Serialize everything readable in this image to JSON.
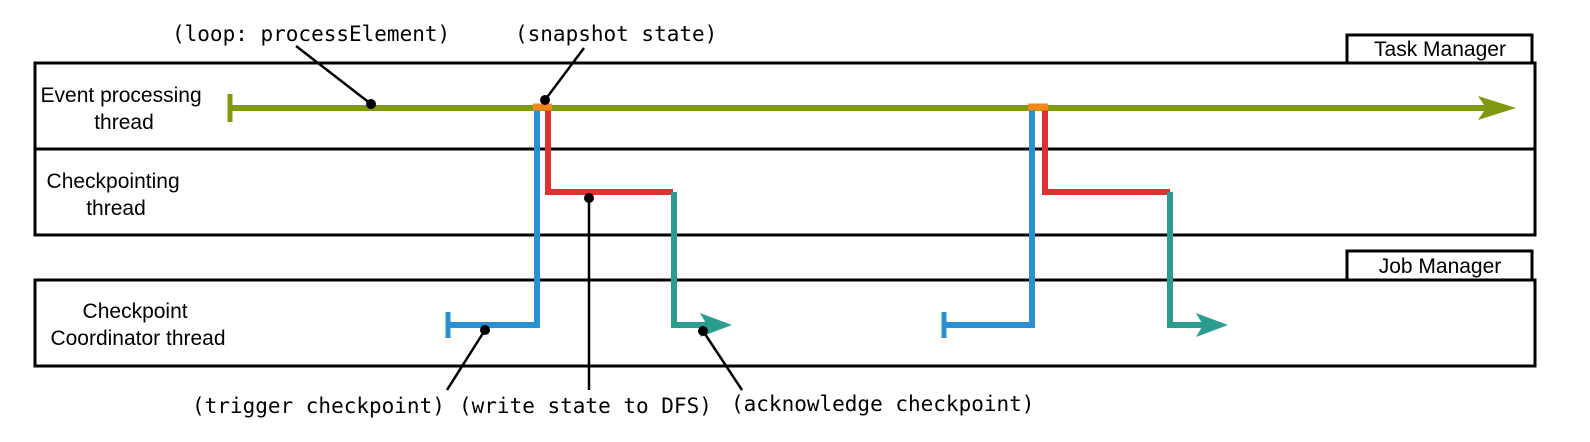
{
  "managers": {
    "task_manager": "Task Manager",
    "job_manager": "Job Manager"
  },
  "threads": {
    "event_processing": [
      "Event processing",
      "thread"
    ],
    "checkpointing": [
      "Checkpointing",
      "thread"
    ],
    "coordinator": [
      "Checkpoint",
      "Coordinator thread"
    ]
  },
  "annotations": {
    "loop": "(loop: processElement)",
    "snapshot": "(snapshot state)",
    "trigger": "(trigger checkpoint)",
    "write": "(write state to DFS)",
    "acknowledge": "(acknowledge checkpoint)"
  },
  "colors": {
    "event_stream": "#7f9a0f",
    "snapshot": "#f08a1c",
    "trigger": "#2b8fd6",
    "write": "#e03030",
    "acknowledge": "#2a9d8f"
  }
}
